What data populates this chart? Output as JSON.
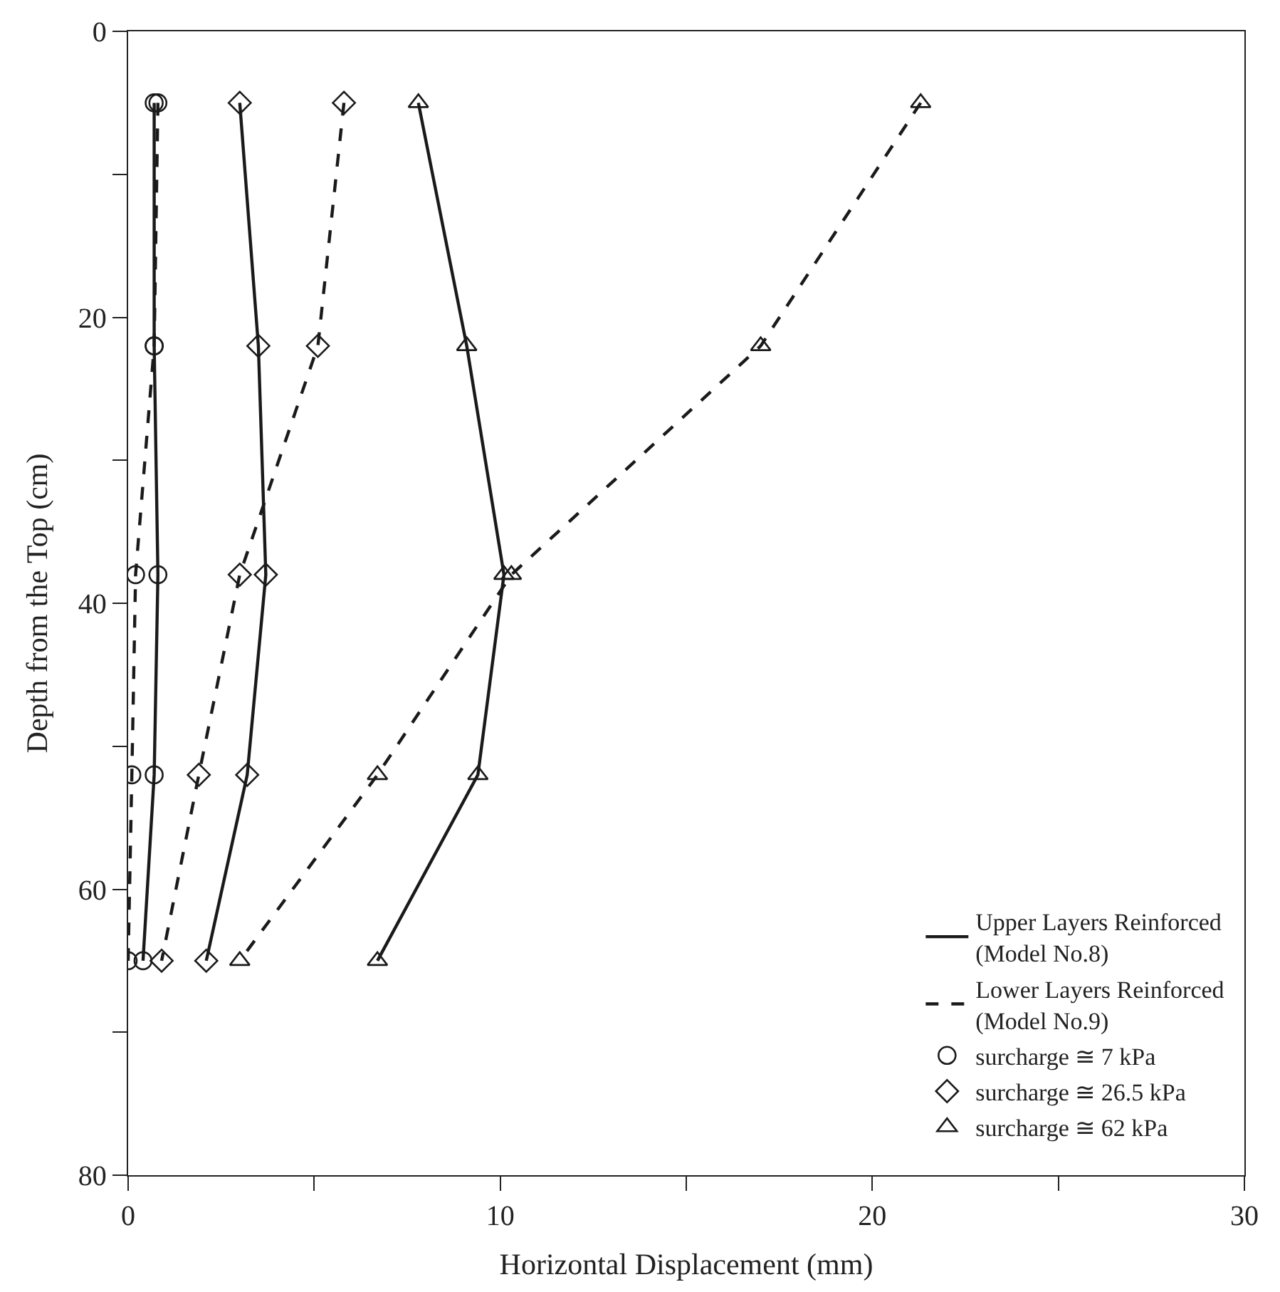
{
  "chart_data": {
    "type": "line",
    "xlabel": "Horizontal Displacement (mm)",
    "ylabel": "Depth from the Top (cm)",
    "xlim": [
      0,
      30
    ],
    "xticks": [
      0,
      {
        "value": 5,
        "label": null
      },
      10,
      {
        "value": 15,
        "label": null
      },
      20,
      {
        "value": 25,
        "label": null
      },
      30
    ],
    "ylim": [
      80,
      0
    ],
    "yticks": [
      0,
      {
        "value": 10,
        "label": null
      },
      20,
      {
        "value": 30,
        "label": null
      },
      40,
      {
        "value": 50,
        "label": null
      },
      60,
      {
        "value": 70,
        "label": null
      },
      80
    ],
    "legend": "bottom right",
    "series": [
      {
        "name": "Upper Layers Reinforced\n(Model No.8)",
        "color": "#1a1a1a",
        "line_style": "solid",
        "marker": "none",
        "x": [
          0.7,
          0.7,
          0.8,
          0.7,
          0.4,
          null,
          3.0,
          3.5,
          3.7,
          3.2,
          2.1,
          null,
          7.8,
          9.1,
          10.1,
          9.4,
          6.7
        ],
        "values": [
          5,
          22,
          38,
          52,
          65,
          null,
          5,
          22,
          38,
          52,
          65,
          null,
          5,
          22,
          38,
          52,
          65
        ]
      },
      {
        "name": "Lower Layers Reinforced\n(Model No.9)",
        "color": "#1a1a1a",
        "line_style": "dashed",
        "marker": "none",
        "x": [
          0.8,
          0.7,
          0.2,
          0.1,
          0.0,
          null,
          5.8,
          5.1,
          3.0,
          1.9,
          0.9,
          null,
          21.3,
          17.0,
          10.3,
          6.7,
          3.0
        ],
        "values": [
          5,
          22,
          38,
          52,
          65,
          null,
          5,
          22,
          38,
          52,
          65,
          null,
          5,
          22,
          38,
          52,
          65
        ]
      },
      {
        "name": "surcharge ≅ 7 kPa",
        "type": "scatter",
        "color": "#1a1a1a",
        "marker": "circle",
        "x": [
          0.7,
          0.7,
          0.8,
          0.7,
          0.4,
          0.8,
          0.7,
          0.2,
          0.1,
          0.0
        ],
        "values": [
          5,
          22,
          38,
          52,
          65,
          5,
          22,
          38,
          52,
          65
        ]
      },
      {
        "name": "surcharge ≅ 26.5 kPa",
        "type": "scatter",
        "color": "#1a1a1a",
        "marker": "diamond",
        "x": [
          3.0,
          3.5,
          3.7,
          3.2,
          2.1,
          5.8,
          5.1,
          3.0,
          1.9,
          0.9
        ],
        "values": [
          5,
          22,
          38,
          52,
          65,
          5,
          22,
          38,
          52,
          65
        ]
      },
      {
        "name": "surcharge ≅ 62 kPa",
        "type": "scatter",
        "color": "#1a1a1a",
        "marker": "triangle",
        "x": [
          7.8,
          9.1,
          10.1,
          9.4,
          6.7,
          21.3,
          17.0,
          10.3,
          6.7,
          3.0
        ],
        "values": [
          5,
          22,
          38,
          52,
          65,
          5,
          22,
          38,
          52,
          65
        ]
      }
    ]
  }
}
